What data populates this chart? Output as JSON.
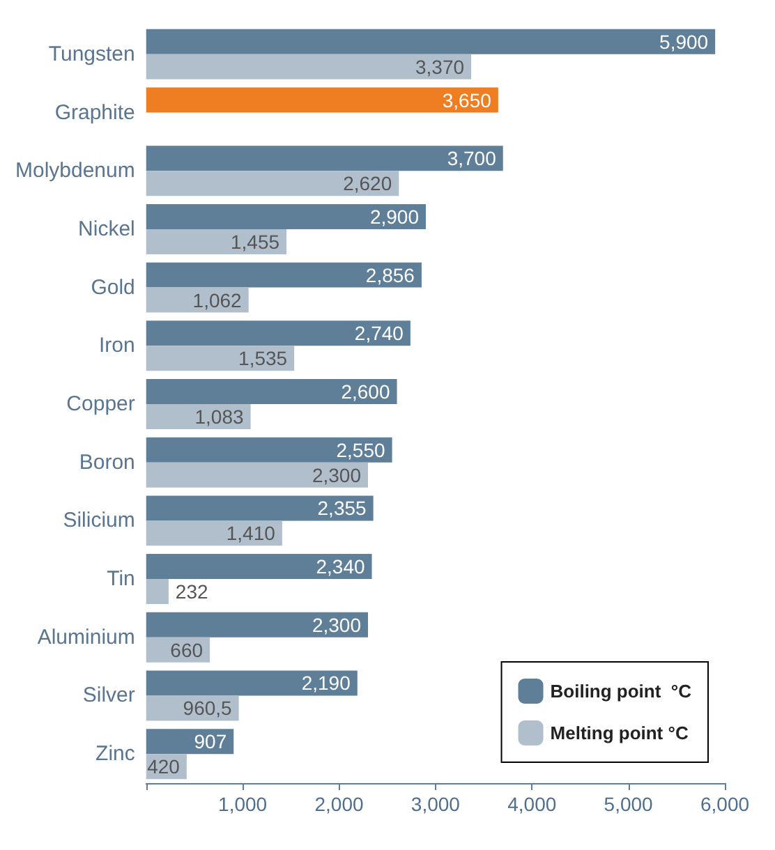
{
  "chart_data": {
    "type": "bar",
    "orientation": "horizontal",
    "categories": [
      "Tungsten",
      "Graphite",
      "Molybdenum",
      "Nickel",
      "Gold",
      "Iron",
      "Copper",
      "Boron",
      "Silicium",
      "Tin",
      "Aluminium",
      "Silver",
      "Zinc"
    ],
    "series": [
      {
        "name": "Boiling point  °C",
        "color": "#5f7e98",
        "colors": [
          "#5f7e98",
          "#ef7d22",
          "#5f7e98",
          "#5f7e98",
          "#5f7e98",
          "#5f7e98",
          "#5f7e98",
          "#5f7e98",
          "#5f7e98",
          "#5f7e98",
          "#5f7e98",
          "#5f7e98",
          "#5f7e98"
        ],
        "values": [
          5900,
          3650,
          3700,
          2900,
          2856,
          2740,
          2600,
          2550,
          2355,
          2340,
          2300,
          2190,
          907
        ],
        "value_labels": [
          "5,900",
          "3,650",
          "3,700",
          "2,900",
          "2,856",
          "2,740",
          "2,600",
          "2,550",
          "2,355",
          "2,340",
          "2,300",
          "2,190",
          "907"
        ]
      },
      {
        "name": "Melting point °C",
        "color": "#b1bfcd",
        "values": [
          3370,
          null,
          2620,
          1455,
          1062,
          1535,
          1083,
          2300,
          1410,
          232,
          660,
          960.5,
          420
        ],
        "value_labels": [
          "3,370",
          null,
          "2,620",
          "1,455",
          "1,062",
          "1,535",
          "1,083",
          "2,300",
          "1,410",
          "232",
          "660",
          "960,5",
          "420"
        ]
      }
    ],
    "xlim": [
      0,
      6000
    ],
    "xticks": [
      {
        "value": 0,
        "label": null
      },
      {
        "value": 1000,
        "label": "1,000"
      },
      {
        "value": 2000,
        "label": "2,000"
      },
      {
        "value": 3000,
        "label": "3,000"
      },
      {
        "value": 4000,
        "label": "4,000"
      },
      {
        "value": 5000,
        "label": "5,000"
      },
      {
        "value": 6000,
        "label": "6,000"
      }
    ],
    "grid": false,
    "legend": "bottom right"
  }
}
